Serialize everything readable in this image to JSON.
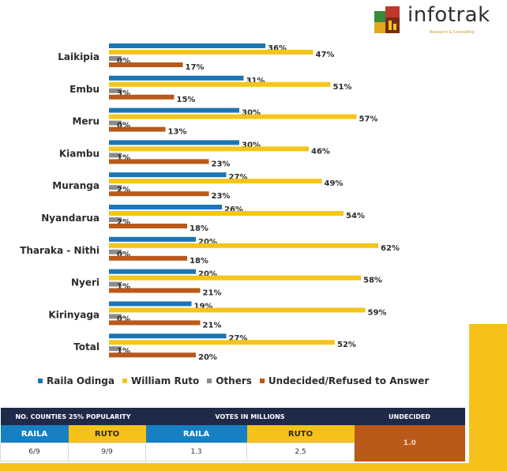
{
  "logo": {
    "name": "infotrak",
    "tagline": "Research & Consulting"
  },
  "chart_data": {
    "type": "bar",
    "orientation": "horizontal",
    "categories": [
      "Laikipia",
      "Embu",
      "Meru",
      "Kiambu",
      "Muranga",
      "Nyandarua",
      "Tharaka - Nithi",
      "Nyeri",
      "Kirinyaga",
      "Total"
    ],
    "series": [
      {
        "name": "Raila Odinga",
        "color": "#1c75b4",
        "values": [
          36,
          31,
          30,
          30,
          27,
          26,
          20,
          20,
          19,
          27
        ]
      },
      {
        "name": "William Ruto",
        "color": "#f5c518",
        "values": [
          47,
          51,
          57,
          46,
          49,
          54,
          62,
          58,
          59,
          52
        ]
      },
      {
        "name": "Others",
        "color": "#8c8c8c",
        "values": [
          0,
          3,
          0,
          1,
          2,
          2,
          0,
          1,
          0,
          1
        ]
      },
      {
        "name": "Undecided/Refused to Answer",
        "color": "#b9591a",
        "values": [
          17,
          15,
          13,
          23,
          23,
          18,
          18,
          21,
          21,
          20
        ]
      }
    ],
    "value_suffix": "%",
    "xlim": [
      0,
      100
    ],
    "grid": false,
    "legend": "bottom"
  },
  "summary_table": {
    "headers": {
      "counties": "NO. COUNTIES 25% POPULARITY",
      "votes": "VOTES IN MILLIONS",
      "undecided": "UNDECIDED"
    },
    "subheaders": {
      "raila": "RAILA",
      "ruto": "RUTO",
      "raila_votes": "RAILA",
      "ruto_votes": "RUTO"
    },
    "values": {
      "raila_counties": "6/9",
      "ruto_counties": "9/9",
      "raila_votes": "1.3",
      "ruto_votes": "2.5",
      "undecided": "1.0"
    }
  }
}
